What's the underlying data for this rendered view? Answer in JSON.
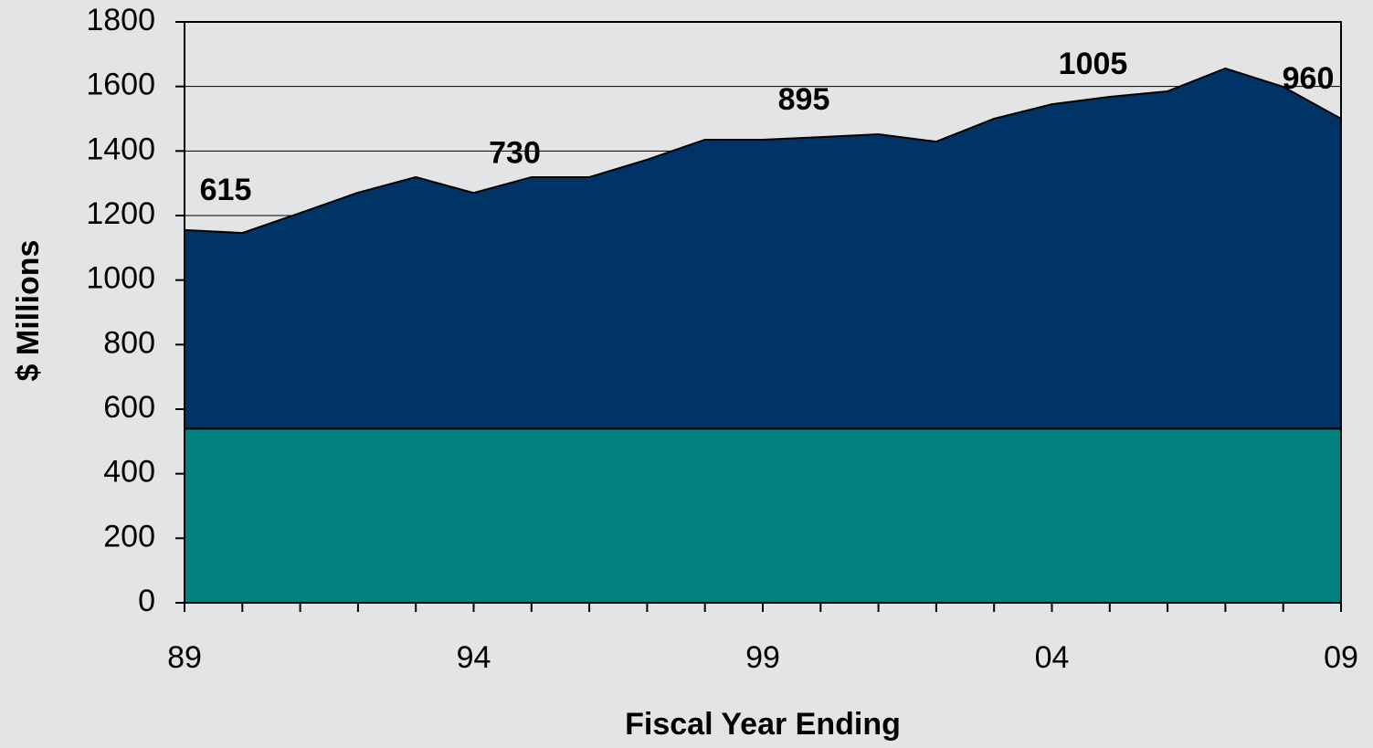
{
  "chart_data": {
    "type": "stacked_area",
    "x_label": "Fiscal Year Ending",
    "y_label": "$ Millions",
    "categories": [
      "89",
      null,
      null,
      null,
      null,
      "94",
      null,
      null,
      null,
      null,
      "99",
      null,
      null,
      null,
      null,
      "04",
      null,
      null,
      null,
      null,
      "09"
    ],
    "series": [
      {
        "color": "#008080",
        "values": [
          540,
          540,
          540,
          540,
          540,
          540,
          540,
          540,
          540,
          540,
          540,
          540,
          540,
          540,
          540,
          540,
          540,
          540,
          540,
          540,
          540
        ]
      },
      {
        "color": "#003366",
        "values": [
          615,
          606,
          668,
          731,
          779,
          730,
          779,
          779,
          833,
          895,
          895,
          903,
          912,
          889,
          960,
          1005,
          1028,
          1045,
          1116,
          1059,
          960
        ],
        "value_labels": [
          "615",
          null,
          null,
          null,
          null,
          "730",
          null,
          null,
          null,
          null,
          "895",
          null,
          null,
          null,
          null,
          "1005",
          null,
          null,
          null,
          null,
          "960"
        ]
      }
    ],
    "ylim": [
      0,
      1800
    ],
    "yticks": [
      0,
      200,
      400,
      600,
      800,
      1000,
      1200,
      1400,
      1600,
      1800
    ],
    "grid": true
  }
}
